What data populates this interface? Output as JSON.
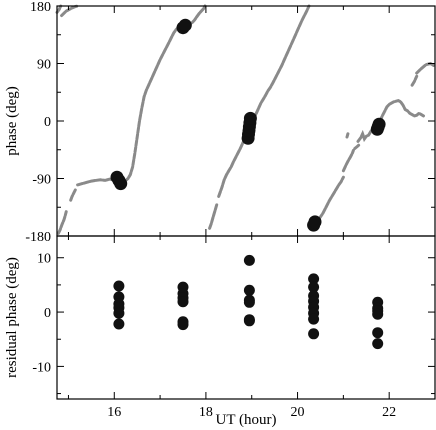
{
  "chart_data": [
    {
      "type": "scatter",
      "panel": "top",
      "xlabel": "",
      "ylabel": "phase (deg)",
      "xlim": [
        14.75,
        23.0
      ],
      "ylim": [
        -180,
        180
      ],
      "y_ticks": [
        -180,
        -90,
        0,
        90,
        180
      ],
      "y_tick_labels": [
        "-180",
        "-90",
        "0",
        "90",
        "180"
      ],
      "x_tick_labels_shown": false,
      "grid": false,
      "colors": {
        "trace": "#8a8a8a",
        "points": "#111111"
      },
      "series": [
        {
          "kind": "trace",
          "values": [
            [
              [
                14.85,
                165
              ],
              [
                14.95,
                172
              ],
              [
                15.05,
                176
              ],
              [
                15.15,
                179
              ],
              [
                15.2,
                180
              ]
            ],
            [
              [
                14.75,
                170
              ],
              [
                14.8,
                175
              ],
              [
                14.83,
                180
              ]
            ],
            [
              [
                14.78,
                -176
              ],
              [
                14.82,
                -170
              ],
              [
                14.86,
                -162
              ],
              [
                14.9,
                -155
              ],
              [
                14.93,
                -148
              ],
              [
                14.95,
                -142
              ]
            ],
            [
              [
                15.05,
                -124
              ],
              [
                15.08,
                -118
              ],
              [
                15.12,
                -112
              ],
              [
                15.15,
                -108
              ]
            ],
            [
              [
                15.2,
                -100
              ],
              [
                15.3,
                -98
              ],
              [
                15.4,
                -96
              ],
              [
                15.5,
                -94
              ],
              [
                15.6,
                -93
              ],
              [
                15.7,
                -92
              ],
              [
                15.8,
                -93
              ],
              [
                15.9,
                -91
              ],
              [
                16.0,
                -92
              ],
              [
                16.08,
                -90
              ],
              [
                16.12,
                -94
              ],
              [
                16.15,
                -93
              ],
              [
                16.18,
                -96
              ]
            ],
            [
              [
                16.22,
                -95
              ],
              [
                16.3,
                -90
              ],
              [
                16.35,
                -84
              ],
              [
                16.4,
                -72
              ],
              [
                16.45,
                -50
              ],
              [
                16.5,
                -25
              ],
              [
                16.55,
                0
              ],
              [
                16.6,
                20
              ],
              [
                16.65,
                38
              ],
              [
                16.7,
                48
              ],
              [
                16.75,
                56
              ],
              [
                16.8,
                64
              ],
              [
                16.85,
                72
              ],
              [
                16.9,
                80
              ],
              [
                16.95,
                88
              ],
              [
                17.0,
                96
              ],
              [
                17.05,
                103
              ],
              [
                17.1,
                110
              ],
              [
                17.15,
                117
              ],
              [
                17.2,
                124
              ],
              [
                17.25,
                131
              ],
              [
                17.3,
                138
              ],
              [
                17.35,
                143
              ],
              [
                17.42,
                148
              ],
              [
                17.5,
                151
              ],
              [
                17.55,
                151
              ],
              [
                17.6,
                150
              ],
              [
                17.65,
                152
              ],
              [
                17.7,
                154
              ],
              [
                17.75,
                158
              ],
              [
                17.8,
                163
              ],
              [
                17.85,
                168
              ],
              [
                17.9,
                172
              ],
              [
                17.95,
                176
              ],
              [
                17.98,
                180
              ]
            ],
            [
              [
                18.08,
                -168
              ],
              [
                18.12,
                -160
              ],
              [
                18.16,
                -150
              ],
              [
                18.2,
                -140
              ],
              [
                18.24,
                -130
              ]
            ],
            [
              [
                18.28,
                -118
              ],
              [
                18.35,
                -104
              ],
              [
                18.4,
                -92
              ],
              [
                18.45,
                -84
              ],
              [
                18.5,
                -78
              ],
              [
                18.55,
                -72
              ],
              [
                18.6,
                -64
              ],
              [
                18.65,
                -57
              ],
              [
                18.7,
                -50
              ],
              [
                18.75,
                -43
              ],
              [
                18.8,
                -35
              ],
              [
                18.85,
                -27
              ],
              [
                18.9,
                -20
              ],
              [
                18.95,
                -12
              ],
              [
                19.0,
                -3
              ],
              [
                19.05,
                5
              ],
              [
                19.1,
                12
              ],
              [
                19.15,
                20
              ],
              [
                19.2,
                28
              ],
              [
                19.25,
                34
              ],
              [
                19.3,
                40
              ],
              [
                19.35,
                47
              ],
              [
                19.4,
                52
              ],
              [
                19.45,
                58
              ],
              [
                19.5,
                65
              ],
              [
                19.55,
                72
              ],
              [
                19.6,
                79
              ],
              [
                19.65,
                86
              ],
              [
                19.7,
                94
              ],
              [
                19.75,
                102
              ],
              [
                19.8,
                110
              ],
              [
                19.85,
                118
              ],
              [
                19.9,
                126
              ],
              [
                19.95,
                134
              ],
              [
                20.0,
                142
              ],
              [
                20.05,
                150
              ],
              [
                20.1,
                158
              ],
              [
                20.15,
                165
              ],
              [
                20.2,
                172
              ],
              [
                20.25,
                180
              ]
            ],
            [
              [
                20.32,
                -170
              ],
              [
                20.38,
                -163
              ],
              [
                20.42,
                -158
              ],
              [
                20.5,
                -150
              ],
              [
                20.55,
                -145
              ],
              [
                20.6,
                -138
              ],
              [
                20.65,
                -131
              ],
              [
                20.7,
                -124
              ],
              [
                20.75,
                -118
              ],
              [
                20.8,
                -112
              ],
              [
                20.85,
                -106
              ],
              [
                20.9,
                -100
              ],
              [
                20.95,
                -95
              ],
              [
                21.0,
                -88
              ]
            ],
            [
              [
                21.0,
                -78
              ],
              [
                21.05,
                -70
              ],
              [
                21.1,
                -63
              ],
              [
                21.15,
                -57
              ],
              [
                21.2,
                -50
              ],
              [
                21.22,
                -46
              ]
            ],
            [
              [
                21.25,
                -43
              ],
              [
                21.3,
                -40
              ],
              [
                21.35,
                -37
              ]
            ],
            [
              [
                21.08,
                -25
              ],
              [
                21.1,
                -20
              ]
            ],
            [
              [
                21.32,
                -32
              ],
              [
                21.38,
                -26
              ],
              [
                21.42,
                -20
              ],
              [
                21.46,
                -28
              ],
              [
                21.5,
                -24
              ],
              [
                21.55,
                -22
              ],
              [
                21.6,
                -16
              ],
              [
                21.65,
                -12
              ],
              [
                21.7,
                -8
              ],
              [
                21.75,
                -4
              ],
              [
                21.8,
                -1
              ]
            ],
            [
              [
                21.8,
                0
              ],
              [
                21.85,
                8
              ],
              [
                21.9,
                15
              ],
              [
                21.95,
                22
              ],
              [
                22.0,
                26
              ],
              [
                22.05,
                28
              ],
              [
                22.1,
                30
              ],
              [
                22.15,
                31
              ],
              [
                22.2,
                32
              ],
              [
                22.25,
                30
              ],
              [
                22.3,
                25
              ],
              [
                22.35,
                18
              ],
              [
                22.4,
                16
              ],
              [
                22.45,
                12
              ],
              [
                22.5,
                10
              ],
              [
                22.55,
                8
              ],
              [
                22.6,
                9
              ],
              [
                22.65,
                12
              ],
              [
                22.7,
                10
              ],
              [
                22.75,
                8
              ]
            ],
            [
              [
                22.5,
                56
              ],
              [
                22.55,
                62
              ],
              [
                22.6,
                70
              ]
            ],
            [
              [
                22.6,
                75
              ],
              [
                22.7,
                82
              ],
              [
                22.8,
                88
              ],
              [
                22.9,
                90
              ],
              [
                22.97,
                87
              ]
            ]
          ]
        },
        {
          "kind": "points",
          "x": [
            16.06,
            16.1,
            16.14,
            17.5,
            17.55,
            18.92,
            18.93,
            18.94,
            18.95,
            18.96,
            18.97,
            20.35,
            20.38,
            21.74,
            21.76,
            21.78
          ],
          "y": [
            -88,
            -93,
            -98,
            146,
            150,
            -27,
            -21,
            -15,
            -9,
            -3,
            4,
            -163,
            -158,
            -13,
            -9,
            -5
          ]
        }
      ]
    },
    {
      "type": "scatter",
      "panel": "bottom",
      "xlabel": "UT (hour)",
      "ylabel": "residual phase (deg)",
      "xlim": [
        14.75,
        23.0
      ],
      "ylim": [
        -16,
        14
      ],
      "x_ticks": [
        16,
        18,
        20,
        22
      ],
      "x_tick_labels": [
        "16",
        "18",
        "20",
        "22"
      ],
      "y_ticks": [
        -10,
        0,
        10
      ],
      "y_tick_labels": [
        "-10",
        "0",
        "10"
      ],
      "grid": false,
      "series": [
        {
          "kind": "points",
          "x": [
            16.1,
            16.1,
            16.1,
            16.1,
            16.1,
            16.1,
            17.5,
            17.5,
            17.5,
            17.5,
            17.5,
            17.5,
            18.95,
            18.95,
            18.95,
            18.95,
            18.95,
            18.95,
            20.35,
            20.35,
            20.35,
            20.35,
            20.35,
            20.35,
            20.35,
            20.35,
            21.75,
            21.75,
            21.75,
            21.75,
            21.75,
            21.75
          ],
          "y": [
            4.8,
            2.8,
            1.5,
            0.8,
            -0.2,
            -2.2,
            4.6,
            3.4,
            2.6,
            1.9,
            -1.8,
            -2.3,
            9.5,
            4.0,
            2.2,
            1.8,
            -1.4,
            -1.6,
            6.1,
            4.6,
            3.0,
            2.0,
            0.9,
            -0.2,
            -1.3,
            -4.0,
            1.8,
            0.7,
            0.2,
            -0.4,
            -3.8,
            -5.8
          ]
        }
      ]
    }
  ]
}
